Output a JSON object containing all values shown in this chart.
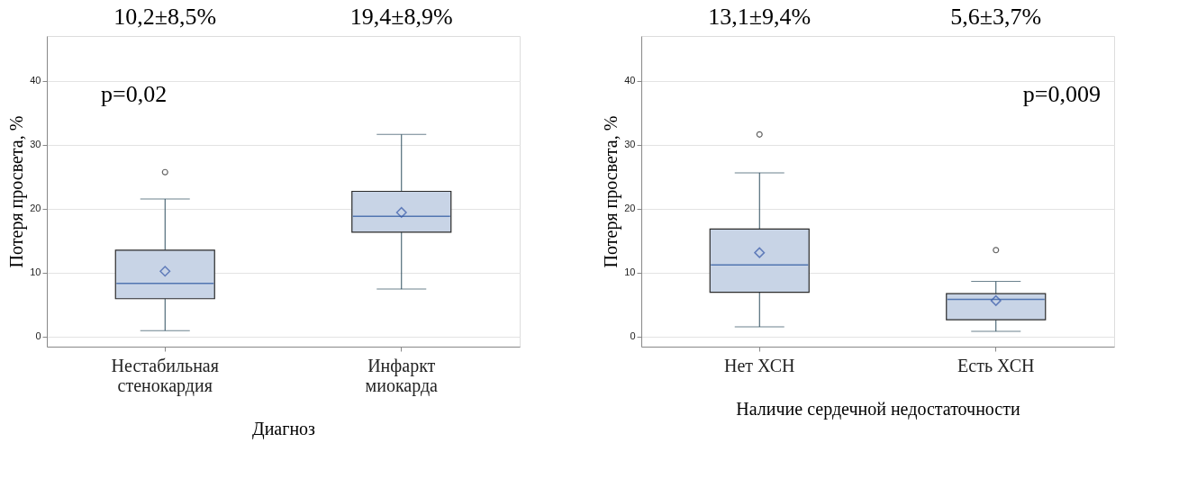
{
  "chart_data": [
    {
      "type": "box",
      "xlabel": "Диагноз",
      "ylabel": "Потеря просвета, %",
      "categories": [
        "Нестабильная\nстенокардия",
        "Инфаркт\nмиокарда"
      ],
      "boxes": [
        {
          "low": 0.9,
          "q1": 5.9,
          "median": 8.3,
          "q3": 13.5,
          "high": 21.5,
          "mean": 10.2,
          "outliers": [
            25.7
          ]
        },
        {
          "low": 7.4,
          "q1": 16.3,
          "median": 18.8,
          "q3": 22.7,
          "high": 31.6,
          "mean": 19.4
        }
      ],
      "ylim": [
        -1.6,
        47
      ],
      "yticks": [
        0,
        10,
        20,
        30,
        40
      ],
      "grid": "y",
      "marker": "diamond",
      "annotations": [
        "10,2±8,5%",
        "19,4±8,9%",
        "p=0,02"
      ]
    },
    {
      "type": "box",
      "xlabel": "Наличие сердечной недостаточности",
      "ylabel": "Потеря просвета, %",
      "categories": [
        "Нет ХСН",
        "Есть ХСН"
      ],
      "boxes": [
        {
          "low": 1.5,
          "q1": 6.9,
          "median": 11.2,
          "q3": 16.8,
          "high": 25.6,
          "mean": 13.1,
          "outliers": [
            31.6
          ]
        },
        {
          "low": 0.8,
          "q1": 2.6,
          "median": 5.8,
          "q3": 6.7,
          "high": 8.6,
          "mean": 5.6,
          "outliers": [
            13.5
          ]
        }
      ],
      "ylim": [
        -1.6,
        47
      ],
      "yticks": [
        0,
        10,
        20,
        30,
        40
      ],
      "grid": "y",
      "marker": "diamond",
      "annotations": [
        "13,1±9,4%",
        "5,6±3,7%",
        "p=0,009"
      ]
    }
  ]
}
